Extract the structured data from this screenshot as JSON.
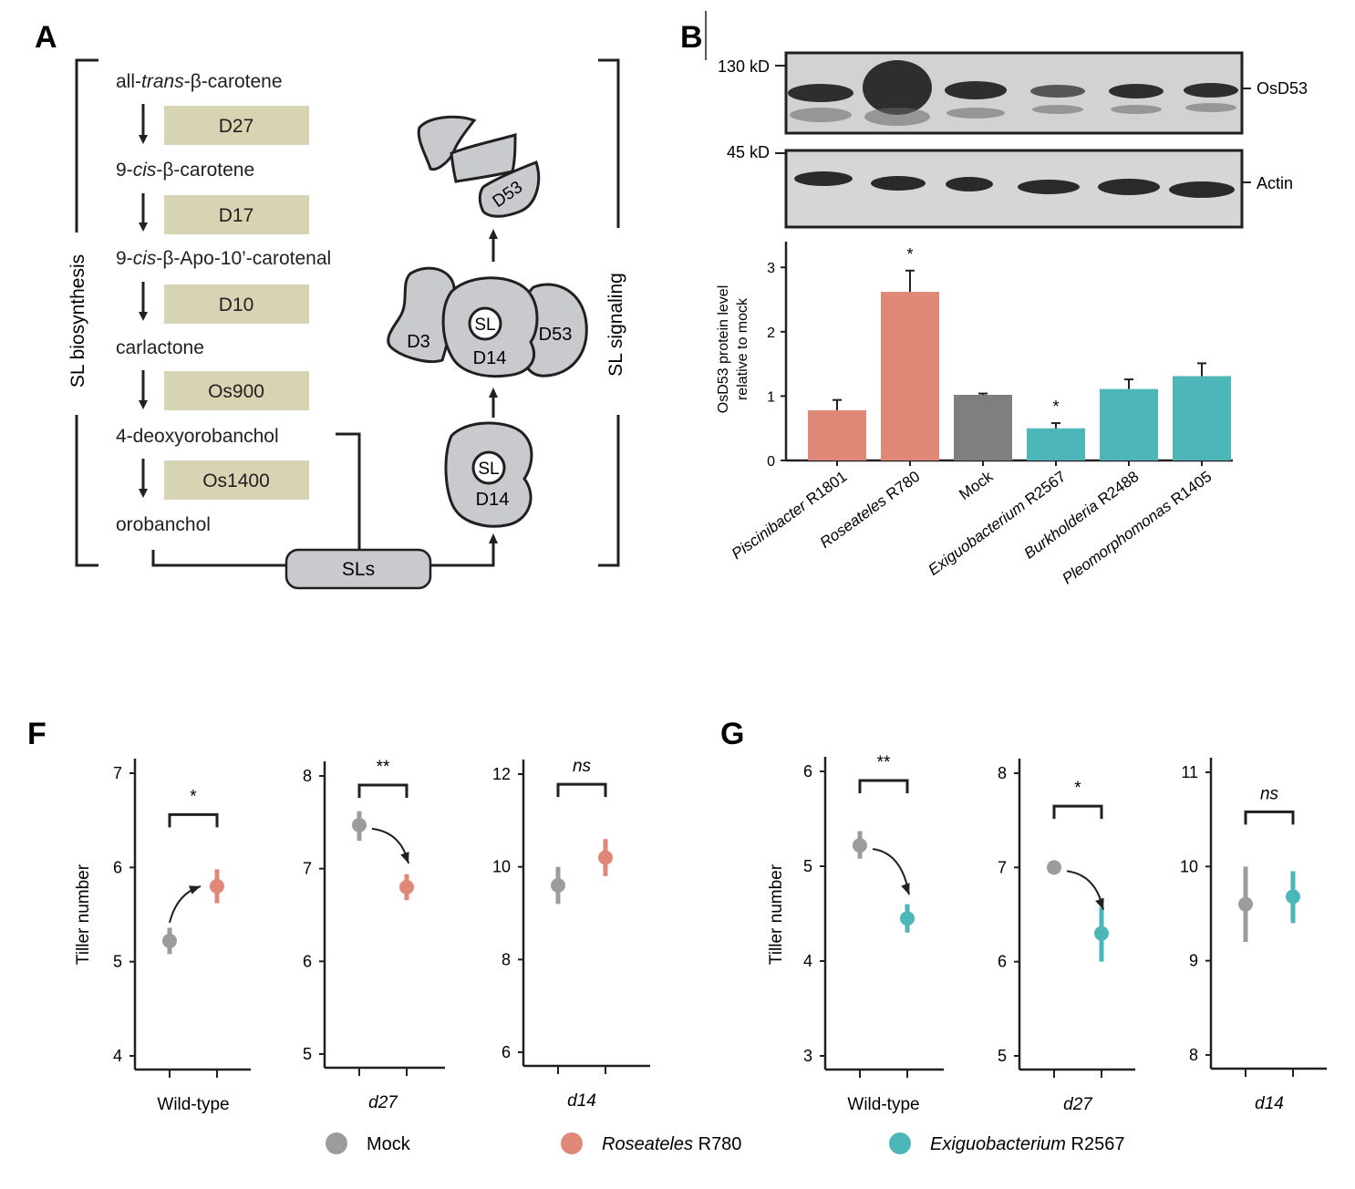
{
  "panelA": {
    "label": "A",
    "side_left": "SL biosynthesis",
    "side_right": "SL signaling",
    "compounds": [
      "all-",
      "trans",
      "-β-carotene",
      "9-",
      "cis",
      "-β-carotene",
      "9-",
      "cis",
      "-β-Apo-10’-carotenal",
      "carlactone",
      "4-deoxyorobanchol",
      "orobanchol"
    ],
    "enzymes": [
      "D27",
      "D17",
      "D10",
      "Os900",
      "Os1400"
    ],
    "sls": "SLs",
    "complex": {
      "sl": "SL",
      "d14": "D14",
      "d3": "D3",
      "d53": "D53"
    }
  },
  "panelB": {
    "label": "B",
    "blot": {
      "marker_top": "130 kD",
      "marker_bottom": "45 kD",
      "band_top": "OsD53",
      "band_bottom": "Actin"
    },
    "chart_data": {
      "type": "bar",
      "ylabel_line1": "OsD53 protein level",
      "ylabel_line2": "relative to mock",
      "ylim": [
        0,
        3.4
      ],
      "yticks": [
        "0",
        "1",
        "2",
        "3"
      ],
      "categories": [
        {
          "genus": "Piscinibacter",
          "strain": "R1801"
        },
        {
          "genus": "Roseateles",
          "strain": "R780"
        },
        {
          "genus": "",
          "strain": "Mock"
        },
        {
          "genus": "Exiguobacterium",
          "strain": "R2567"
        },
        {
          "genus": "Burkholderia",
          "strain": "R2488"
        },
        {
          "genus": "Pleomorphomonas",
          "strain": "R1405"
        }
      ],
      "values": [
        0.78,
        2.62,
        1.02,
        0.5,
        1.11,
        1.31
      ],
      "errors": [
        0.16,
        0.33,
        0.02,
        0.08,
        0.15,
        0.2
      ],
      "colors": [
        "#e08878",
        "#e08878",
        "#7f7f7f",
        "#4db6b9",
        "#4db6b9",
        "#4db6b9"
      ],
      "sig": [
        "",
        "*",
        "",
        "*",
        "",
        ""
      ]
    }
  },
  "panelF": {
    "label": "F"
  },
  "panelG": {
    "label": "G"
  },
  "tiller": {
    "ylabel": "Tiller number",
    "chart_data": [
      {
        "type": "scatter",
        "group": "Wild-type",
        "italic": false,
        "ylim": [
          4,
          7
        ],
        "yticks": [
          "4",
          "5",
          "6",
          "7"
        ],
        "points": [
          {
            "mean": 5.22,
            "low": 5.08,
            "high": 5.36,
            "color": "#9b9c9e"
          },
          {
            "mean": 5.8,
            "low": 5.62,
            "high": 5.98,
            "color": "#e08878"
          }
        ],
        "sig": "*",
        "arrow": "up"
      },
      {
        "type": "scatter",
        "group": "d27",
        "italic": true,
        "ylim": [
          5,
          8
        ],
        "yticks": [
          "5",
          "6",
          "7",
          "8"
        ],
        "points": [
          {
            "mean": 7.47,
            "low": 7.3,
            "high": 7.62,
            "color": "#9b9c9e"
          },
          {
            "mean": 6.8,
            "low": 6.66,
            "high": 6.94,
            "color": "#e08878"
          }
        ],
        "sig": "**",
        "arrow": "down"
      },
      {
        "type": "scatter",
        "group": "d14",
        "italic": true,
        "ylim": [
          6,
          12
        ],
        "yticks": [
          "6",
          "8",
          "10",
          "12"
        ],
        "points": [
          {
            "mean": 9.6,
            "low": 9.2,
            "high": 10.0,
            "color": "#9b9c9e"
          },
          {
            "mean": 10.2,
            "low": 9.8,
            "high": 10.6,
            "color": "#e08878"
          }
        ],
        "sig": "ns",
        "arrow": ""
      },
      {
        "type": "scatter",
        "group": "Wild-type",
        "italic": false,
        "ylim": [
          3,
          6
        ],
        "yticks": [
          "3",
          "4",
          "5",
          "6"
        ],
        "points": [
          {
            "mean": 5.22,
            "low": 5.08,
            "high": 5.37,
            "color": "#9b9c9e"
          },
          {
            "mean": 4.45,
            "low": 4.3,
            "high": 4.6,
            "color": "#4db6b9"
          }
        ],
        "sig": "**",
        "arrow": "down"
      },
      {
        "type": "scatter",
        "group": "d27",
        "italic": true,
        "ylim": [
          5,
          8
        ],
        "yticks": [
          "5",
          "6",
          "7",
          "8"
        ],
        "points": [
          {
            "mean": 7.0,
            "low": 6.93,
            "high": 7.07,
            "color": "#9b9c9e"
          },
          {
            "mean": 6.3,
            "low": 6.0,
            "high": 6.58,
            "color": "#4db6b9"
          }
        ],
        "sig": "*",
        "arrow": "down"
      },
      {
        "type": "scatter",
        "group": "d14",
        "italic": true,
        "ylim": [
          8,
          11
        ],
        "yticks": [
          "8",
          "9",
          "10",
          "11"
        ],
        "points": [
          {
            "mean": 9.6,
            "low": 9.2,
            "high": 10.0,
            "color": "#9b9c9e"
          },
          {
            "mean": 9.68,
            "low": 9.4,
            "high": 9.95,
            "color": "#4db6b9"
          }
        ],
        "sig": "ns",
        "arrow": ""
      }
    ]
  },
  "legend": [
    {
      "text": "Mock",
      "italic_part": "",
      "color": "#9b9c9e"
    },
    {
      "text": " R780",
      "italic_part": "Roseateles",
      "color": "#e08878"
    },
    {
      "text": " R2567",
      "italic_part": "Exiguobacterium",
      "color": "#4db6b9"
    }
  ]
}
